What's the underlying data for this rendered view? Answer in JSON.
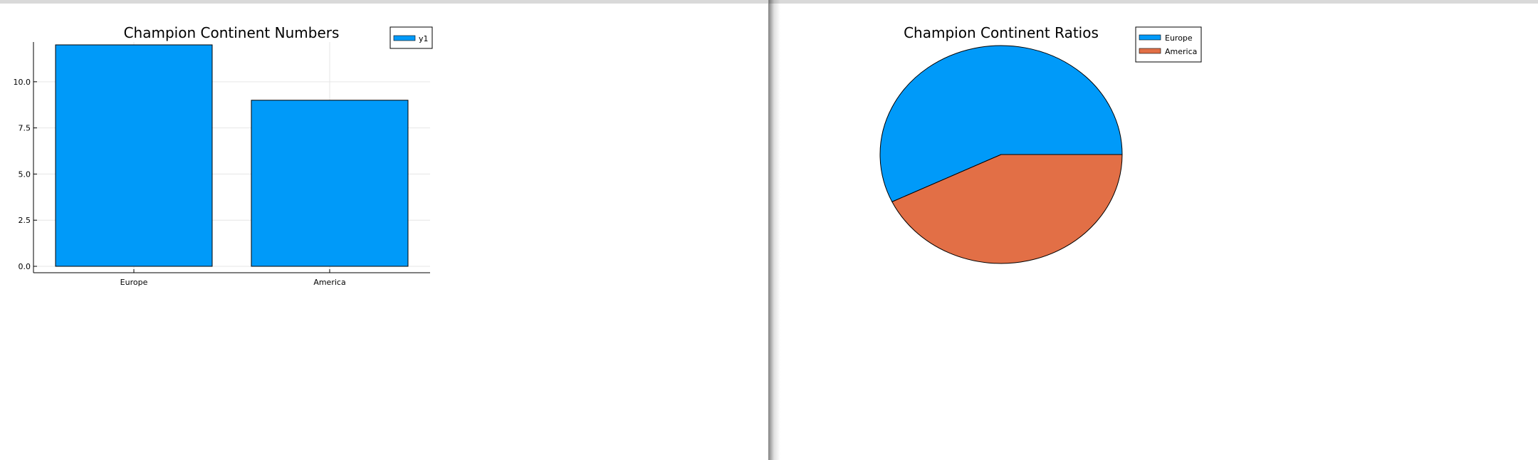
{
  "colors": {
    "series1": "#009AF9",
    "series2": "#E26F46",
    "grid": "#e6e6e6",
    "axis": "#000000"
  },
  "chart_data": [
    {
      "type": "bar",
      "title": "Champion Continent Numbers",
      "categories": [
        "Europe",
        "America"
      ],
      "series": [
        {
          "name": "y1",
          "values": [
            12,
            9
          ]
        }
      ],
      "ylim": [
        0,
        12
      ],
      "yticks": [
        "0.0",
        "2.5",
        "5.0",
        "7.5",
        "10.0"
      ],
      "grid": true,
      "legend": "top-right"
    },
    {
      "type": "pie",
      "title": "Champion Continent Ratios",
      "labels": [
        "Europe",
        "America"
      ],
      "values": [
        12,
        9
      ],
      "legend": "top-right"
    }
  ]
}
